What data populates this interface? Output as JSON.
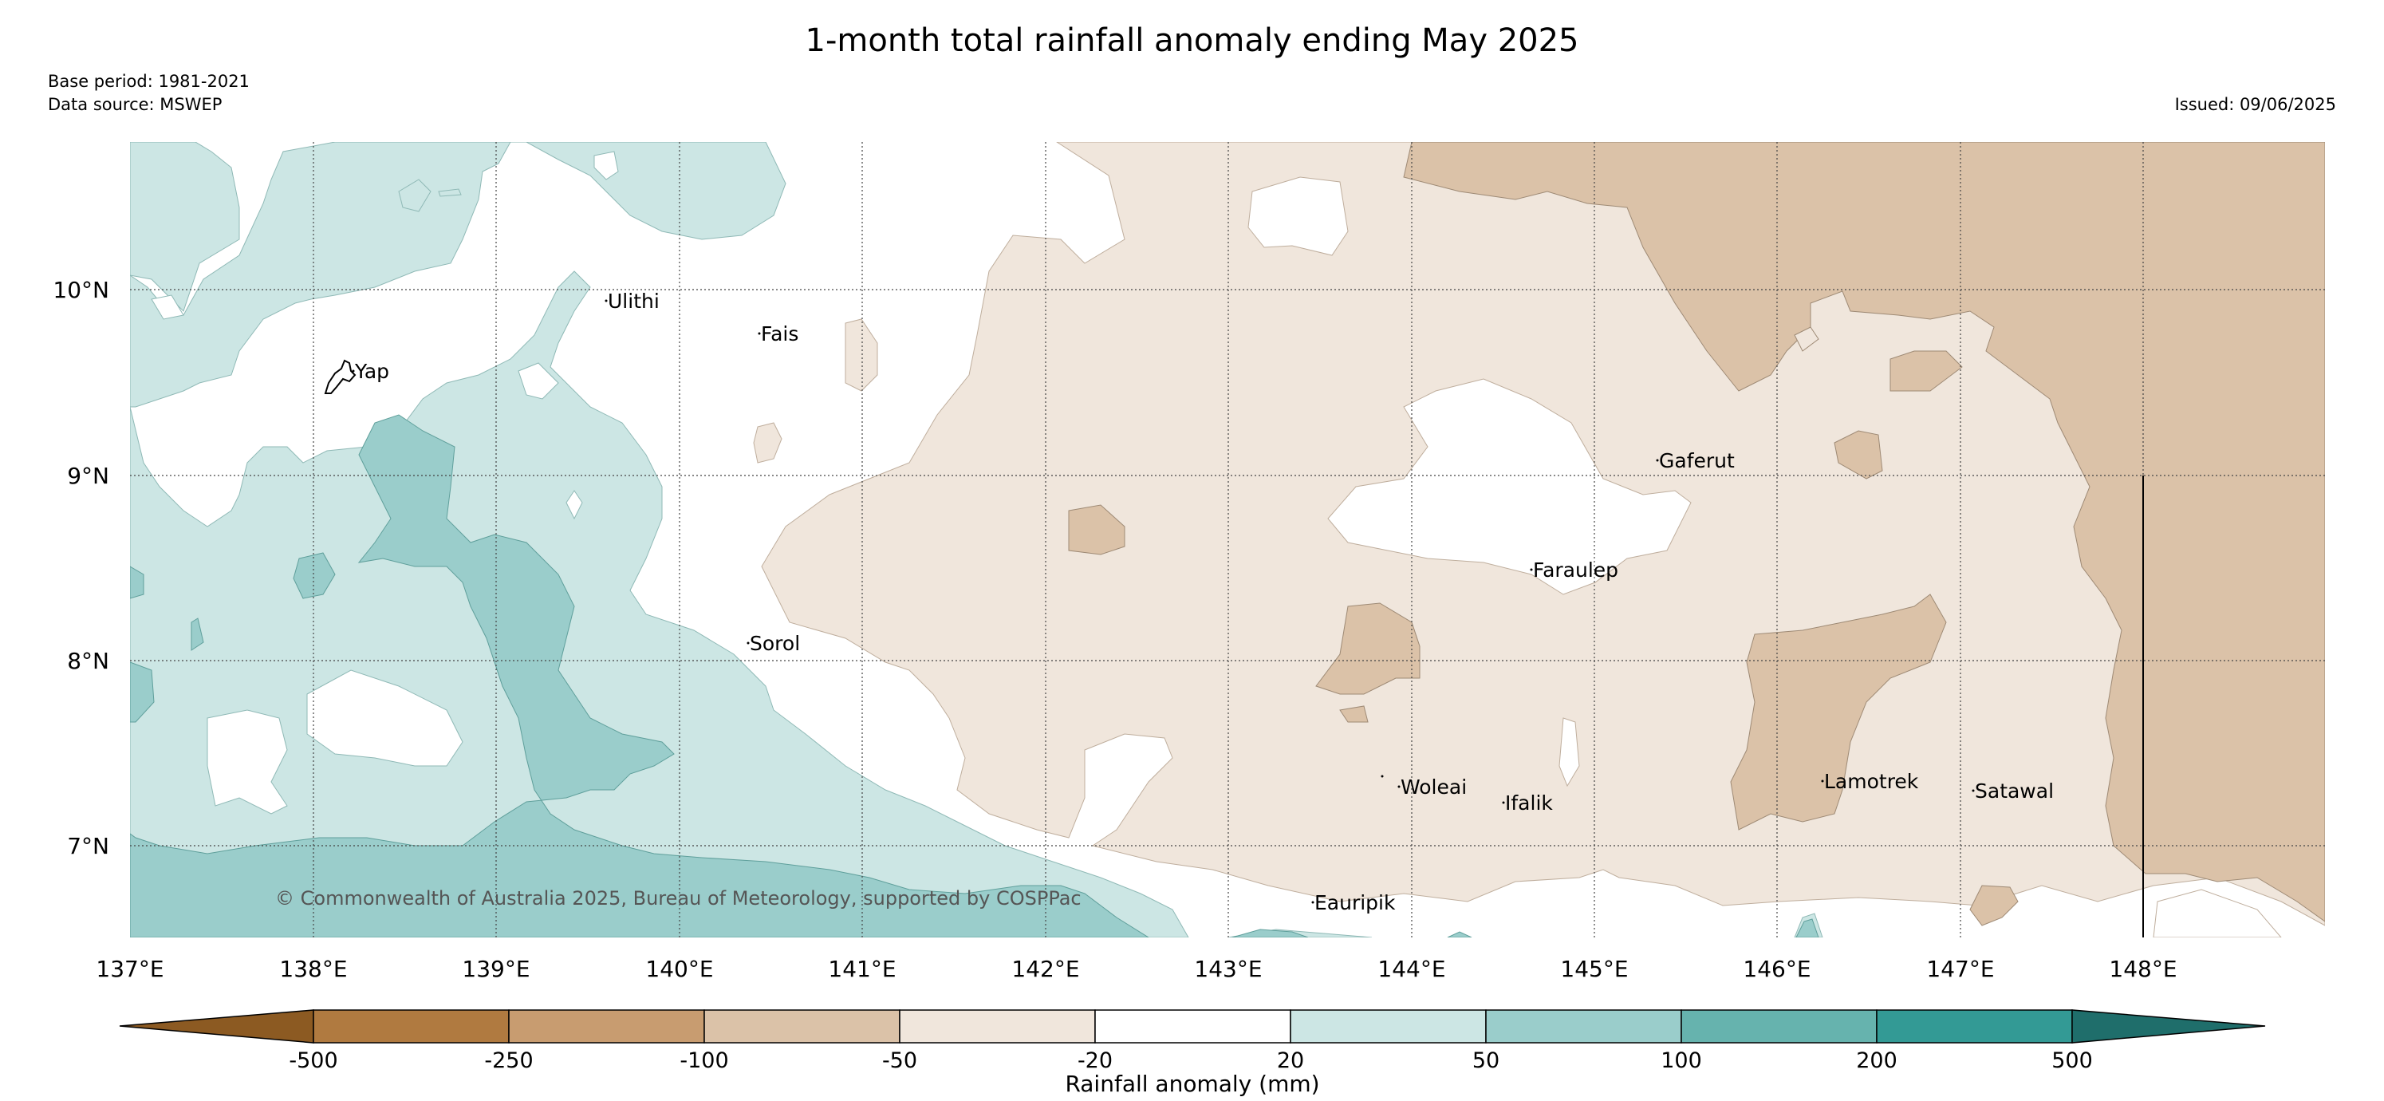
{
  "title": "1-month total rainfall anomaly ending May 2025",
  "base_period": "Base period: 1981-2021",
  "data_source": "Data source: MSWEP",
  "issued": "Issued: 09/06/2025",
  "copyright": "© Commonwealth of Australia 2025, Bureau of Meteorology, supported by COSPPac",
  "map": {
    "lon_labels": [
      "137°E",
      "138°E",
      "139°E",
      "140°E",
      "141°E",
      "142°E",
      "143°E",
      "144°E",
      "145°E",
      "146°E",
      "147°E",
      "148°E"
    ],
    "lat_labels": [
      "10°N",
      "9°N",
      "8°N",
      "7°N"
    ],
    "places": [
      {
        "name": "Ulithi"
      },
      {
        "name": "Fais"
      },
      {
        "name": "Yap"
      },
      {
        "name": "Gaferut"
      },
      {
        "name": "Faraulep"
      },
      {
        "name": "Sorol"
      },
      {
        "name": "Woleai"
      },
      {
        "name": "Ifalik"
      },
      {
        "name": "Lamotrek"
      },
      {
        "name": "Satawal"
      },
      {
        "name": "Eauripik"
      }
    ]
  },
  "colorbar": {
    "label": "Rainfall anomaly (mm)",
    "ticks": [
      "-500",
      "-250",
      "-100",
      "-50",
      "-20",
      "20",
      "50",
      "100",
      "200",
      "500"
    ],
    "colors": {
      "below_min": "#8c5a22",
      "lt_-250": "#b07a40",
      "-250_-100": "#c89c70",
      "-100_-50": "#dbc2a8",
      "-50_-20": "#f0e6dc",
      "-20_20": "#ffffff",
      "20_50": "#cce6e4",
      "50_100": "#9acdcb",
      "100_200": "#66b3ae",
      "200_500": "#339a95",
      "above_max": "#1f6e6b"
    }
  }
}
